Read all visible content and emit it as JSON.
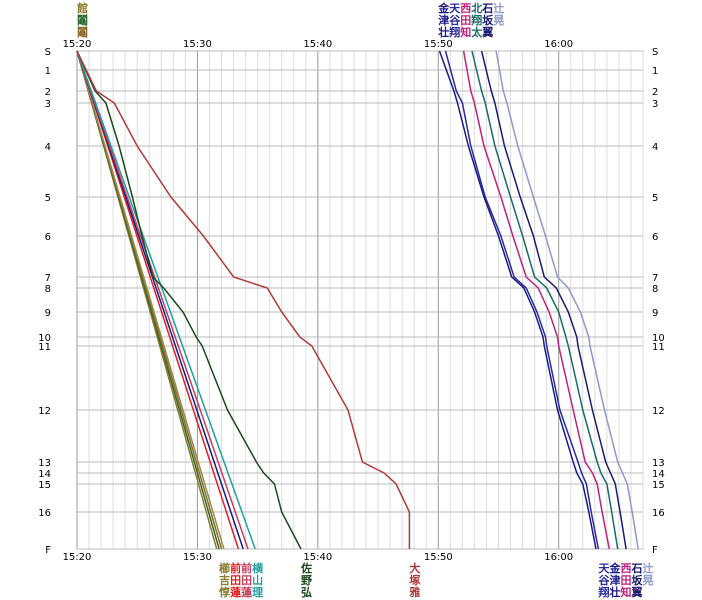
{
  "chart_data": {
    "type": "line",
    "title": "",
    "xlabel": "",
    "ylabel": "",
    "x_unit": "clock time (minutes past 15:00)",
    "x_ticks": [
      "15:20",
      "15:30",
      "15:40",
      "15:50",
      "16:00"
    ],
    "x_tick_values": [
      20,
      30,
      40,
      50,
      60
    ],
    "xlim": [
      20,
      67
    ],
    "y_ticks": [
      "S",
      "1",
      "2",
      "3",
      "4",
      "5",
      "6",
      "7",
      "8",
      "9",
      "10",
      "11",
      "12",
      "13",
      "14",
      "15",
      "16",
      "F"
    ],
    "y_tick_values": [
      0,
      1,
      2,
      3,
      4,
      5,
      6,
      7,
      8,
      9,
      10,
      11,
      12,
      13,
      14,
      15,
      16,
      17
    ],
    "grid": true,
    "series": [
      {
        "color": "#8b7a2b",
        "points": [
          [
            20,
            0
          ],
          [
            31.6,
            17
          ]
        ]
      },
      {
        "color": "#2e6b2e",
        "points": [
          [
            20,
            0
          ],
          [
            31.8,
            17
          ]
        ]
      },
      {
        "color": "#8b6a2b",
        "points": [
          [
            20,
            0
          ],
          [
            32.0,
            17
          ]
        ]
      },
      {
        "color": "#9a8a4a",
        "points": [
          [
            20,
            0
          ],
          [
            32.2,
            17
          ]
        ]
      },
      {
        "color": "#e02020",
        "points": [
          [
            20,
            0
          ],
          [
            33.4,
            17
          ]
        ]
      },
      {
        "color": "#1a1a8a",
        "points": [
          [
            20,
            0
          ],
          [
            33.8,
            17
          ]
        ]
      },
      {
        "color": "#c04060",
        "points": [
          [
            20,
            0
          ],
          [
            34.2,
            17
          ]
        ]
      },
      {
        "color": "#20a0a0",
        "points": [
          [
            20,
            0
          ],
          [
            34.8,
            17
          ]
        ]
      },
      {
        "color": "#1a4a1a",
        "points": [
          [
            20,
            0
          ],
          [
            21.5,
            2
          ],
          [
            22.4,
            3
          ],
          [
            23.5,
            4
          ],
          [
            24.6,
            5
          ],
          [
            25.4,
            6
          ],
          [
            26.3,
            7
          ],
          [
            27.2,
            8
          ],
          [
            28.8,
            9
          ],
          [
            29.9,
            10
          ],
          [
            30.4,
            11
          ],
          [
            32.5,
            12
          ],
          [
            34.9,
            13
          ],
          [
            35.5,
            14
          ],
          [
            36.4,
            15
          ],
          [
            37.0,
            16
          ],
          [
            38.6,
            17
          ]
        ]
      },
      {
        "color": "#b03a3a",
        "points": [
          [
            20,
            0
          ],
          [
            21.6,
            2
          ],
          [
            23.1,
            3
          ],
          [
            25.0,
            4
          ],
          [
            27.8,
            5
          ],
          [
            30.5,
            6
          ],
          [
            33.0,
            7
          ],
          [
            35.8,
            8
          ],
          [
            37.0,
            9
          ],
          [
            38.5,
            10
          ],
          [
            39.5,
            11
          ],
          [
            42.5,
            12
          ],
          [
            43.7,
            13
          ],
          [
            45.5,
            14
          ],
          [
            46.5,
            15
          ],
          [
            47.6,
            16
          ],
          [
            47.6,
            17
          ]
        ]
      },
      {
        "color": "#1a1a8a",
        "points": [
          [
            50.1,
            0
          ],
          [
            51.3,
            2
          ],
          [
            51.6,
            3
          ],
          [
            52.5,
            4
          ],
          [
            53.8,
            5
          ],
          [
            55.0,
            6
          ],
          [
            56.1,
            7
          ],
          [
            57.1,
            8
          ],
          [
            58.0,
            9
          ],
          [
            58.7,
            10
          ],
          [
            58.8,
            11
          ],
          [
            59.9,
            12
          ],
          [
            61.2,
            13
          ],
          [
            61.5,
            14
          ],
          [
            62.0,
            15
          ],
          [
            62.5,
            16
          ],
          [
            63.1,
            17
          ]
        ]
      },
      {
        "color": "#2a2a9a",
        "points": [
          [
            50.6,
            0
          ],
          [
            51.5,
            2
          ],
          [
            52.0,
            3
          ],
          [
            52.7,
            4
          ],
          [
            53.9,
            5
          ],
          [
            55.2,
            6
          ],
          [
            56.3,
            7
          ],
          [
            57.3,
            8
          ],
          [
            58.2,
            9
          ],
          [
            58.9,
            10
          ],
          [
            59.0,
            11
          ],
          [
            60.1,
            12
          ],
          [
            61.6,
            13
          ],
          [
            61.9,
            14
          ],
          [
            62.3,
            15
          ],
          [
            62.7,
            16
          ],
          [
            63.3,
            17
          ]
        ]
      },
      {
        "color": "#c02080",
        "points": [
          [
            52.1,
            0
          ],
          [
            52.7,
            2
          ],
          [
            53.0,
            3
          ],
          [
            53.8,
            4
          ],
          [
            55.2,
            5
          ],
          [
            56.2,
            6
          ],
          [
            57.3,
            7
          ],
          [
            58.3,
            8
          ],
          [
            59.2,
            9
          ],
          [
            59.9,
            10
          ],
          [
            60.0,
            11
          ],
          [
            61.2,
            12
          ],
          [
            62.2,
            13
          ],
          [
            62.8,
            14
          ],
          [
            63.2,
            15
          ],
          [
            63.6,
            16
          ],
          [
            64.2,
            17
          ]
        ]
      },
      {
        "color": "#1a6a6a",
        "points": [
          [
            52.8,
            0
          ],
          [
            53.6,
            2
          ],
          [
            53.9,
            3
          ],
          [
            54.7,
            4
          ],
          [
            56.0,
            5
          ],
          [
            57.0,
            6
          ],
          [
            58.0,
            7
          ],
          [
            59.0,
            8
          ],
          [
            60.0,
            9
          ],
          [
            60.6,
            10
          ],
          [
            60.8,
            11
          ],
          [
            62.0,
            12
          ],
          [
            63.2,
            13
          ],
          [
            63.5,
            14
          ],
          [
            64.0,
            15
          ],
          [
            64.4,
            16
          ],
          [
            64.9,
            17
          ]
        ]
      },
      {
        "color": "#1a1a70",
        "points": [
          [
            53.6,
            0
          ],
          [
            54.4,
            2
          ],
          [
            54.7,
            3
          ],
          [
            55.5,
            4
          ],
          [
            56.8,
            5
          ],
          [
            57.9,
            6
          ],
          [
            58.8,
            7
          ],
          [
            59.8,
            8
          ],
          [
            60.8,
            9
          ],
          [
            61.5,
            10
          ],
          [
            61.6,
            11
          ],
          [
            62.8,
            12
          ],
          [
            63.9,
            13
          ],
          [
            64.3,
            14
          ],
          [
            64.7,
            15
          ],
          [
            65.1,
            16
          ],
          [
            65.6,
            17
          ]
        ]
      },
      {
        "color": "#8a9ac8",
        "points": [
          [
            54.8,
            0
          ],
          [
            55.4,
            2
          ],
          [
            55.7,
            3
          ],
          [
            56.6,
            4
          ],
          [
            57.9,
            5
          ],
          [
            58.9,
            6
          ],
          [
            59.9,
            7
          ],
          [
            60.8,
            8
          ],
          [
            61.8,
            9
          ],
          [
            62.5,
            10
          ],
          [
            62.6,
            11
          ],
          [
            63.8,
            12
          ],
          [
            64.9,
            13
          ],
          [
            65.3,
            14
          ],
          [
            65.7,
            15
          ],
          [
            66.1,
            16
          ],
          [
            66.6,
            17
          ]
        ]
      }
    ],
    "top_label_groups": [
      {
        "time": 20,
        "rows": [
          [
            "館"
          ],
          [
            "鬮"
          ],
          [
            "鬮"
          ]
        ],
        "colors": [
          [
            "#8b7a2b"
          ],
          [
            "#2e6b2e"
          ],
          [
            "#8b6a2b"
          ]
        ]
      },
      {
        "time": 50,
        "rows": [
          [
            "金",
            "天",
            "西",
            "北",
            "石",
            "辻"
          ],
          [
            "津",
            "谷",
            "田",
            "翔",
            "坂",
            "晃"
          ],
          [
            "壮",
            "翔",
            "知",
            "太",
            "翼"
          ]
        ],
        "colors": [
          [
            "#1a1a8a",
            "#2a2a9a",
            "#c02080",
            "#1a6a6a",
            "#1a1a70",
            "#8a9ac8"
          ],
          [
            "#1a1a8a",
            "#2a2a9a",
            "#c02080",
            "#1a6a6a",
            "#1a1a70",
            "#8a9ac8"
          ],
          [
            "#1a1a8a",
            "#2a2a9a",
            "#c02080",
            "#1a6a6a",
            "#1a1a70"
          ]
        ]
      }
    ],
    "bottom_label_groups": [
      {
        "time": 31.8,
        "rows": [
          [
            "櫛",
            "前",
            "前",
            "横"
          ],
          [
            "吉",
            "田",
            "田",
            "山"
          ],
          [
            "惇",
            "蓮",
            "蓮",
            "理"
          ]
        ],
        "colors": [
          [
            "#8b7a2b",
            "#e02020",
            "#c04060",
            "#20a0a0"
          ],
          [
            "#8b7a2b",
            "#e02020",
            "#c04060",
            "#20a0a0"
          ],
          [
            "#8b7a2b",
            "#e02020",
            "#c04060",
            "#20a0a0"
          ]
        ]
      },
      {
        "time": 38.6,
        "rows": [
          [
            "佐"
          ],
          [
            "野"
          ],
          [
            "弘"
          ]
        ],
        "colors": [
          [
            "#1a4a1a"
          ],
          [
            "#1a4a1a"
          ],
          [
            "#1a4a1a"
          ]
        ]
      },
      {
        "time": 47.6,
        "rows": [
          [
            "大"
          ],
          [
            "塚"
          ],
          [
            "雅"
          ]
        ],
        "colors": [
          [
            "#b03a3a"
          ],
          [
            "#b03a3a"
          ],
          [
            "#b03a3a"
          ]
        ]
      },
      {
        "time": 63.3,
        "rows": [
          [
            "天",
            "金",
            "西",
            "石",
            "辻"
          ],
          [
            "谷",
            "津",
            "田",
            "坂",
            "晃"
          ],
          [
            "翔",
            "壮",
            "知",
            "翼"
          ]
        ],
        "colors": [
          [
            "#2a2a9a",
            "#1a1a8a",
            "#c02080",
            "#1a1a70",
            "#8a9ac8"
          ],
          [
            "#2a2a9a",
            "#1a1a8a",
            "#c02080",
            "#1a1a70",
            "#8a9ac8"
          ],
          [
            "#2a2a9a",
            "#1a1a8a",
            "#c02080",
            "#1a1a70"
          ]
        ]
      }
    ],
    "colors": {
      "grid": "#bbbbbb",
      "frame": "#888888",
      "background": "#ffffff"
    }
  }
}
